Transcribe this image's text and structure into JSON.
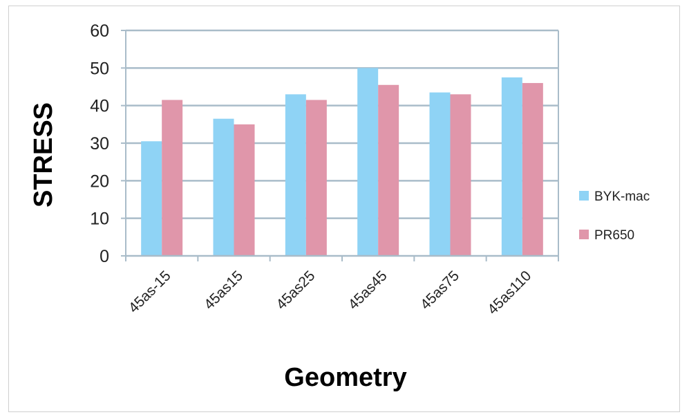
{
  "chart_data": {
    "type": "bar",
    "title": "",
    "xlabel": "Geometry",
    "ylabel": "STRESS",
    "categories": [
      "45as-15",
      "45as15",
      "45as25",
      "45as45",
      "45as75",
      "45as110"
    ],
    "series": [
      {
        "name": "BYK-mac",
        "color": "#8fd3f5",
        "values": [
          30.5,
          36.5,
          43,
          50,
          43.5,
          47.5
        ]
      },
      {
        "name": "PR650",
        "color": "#e096aa",
        "values": [
          41.5,
          35,
          41.5,
          45.5,
          43,
          46
        ]
      }
    ],
    "ylim": [
      0,
      60
    ],
    "yticks": [
      0,
      10,
      20,
      30,
      40,
      50,
      60
    ],
    "grid": true,
    "legend": "right"
  }
}
